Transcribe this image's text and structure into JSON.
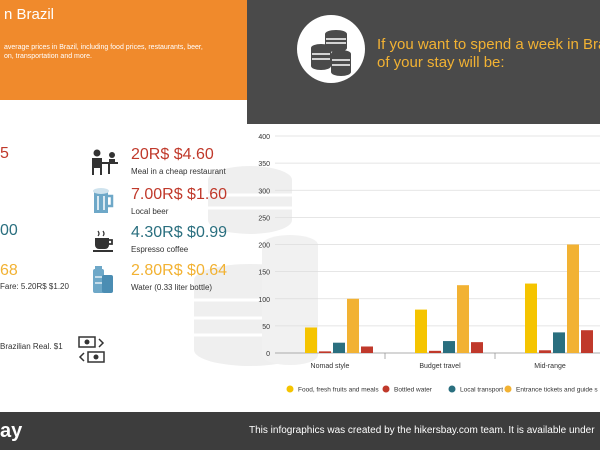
{
  "header": {
    "title": "n Brazil",
    "desc_line1": "average prices in Brazil, including food prices, restaurants, beer,",
    "desc_line2": "on, transportation and more.",
    "right_line1": "If you want to spend a week in Braz",
    "right_line2": "of your stay will be:"
  },
  "left_values": [
    {
      "text": "5",
      "color": "#c0392b"
    },
    {
      "text": "00",
      "color": "#2a6f7f"
    },
    {
      "text": "68",
      "color": "#f2b233"
    }
  ],
  "fare_text": "Fare: 5.20R$ $1.20",
  "currency_text": "Brazilian Real. $1",
  "price_items": [
    {
      "value": "20R$ $4.60",
      "label": "Meal in a cheap restaurant",
      "color": "#c0392b",
      "icon": "restaurant-icon"
    },
    {
      "value": "7.00R$ $1.60",
      "label": "Local beer",
      "color": "#c0392b",
      "icon": "beer-icon"
    },
    {
      "value": "4.30R$ $0.99",
      "label": "Espresso coffee",
      "color": "#2a6f7f",
      "icon": "coffee-icon"
    },
    {
      "value": "2.80R$ $0.64",
      "label": "Water (0.33 liter bottle)",
      "color": "#f2b233",
      "icon": "water-bottle-icon"
    }
  ],
  "footer": {
    "logo": "ay",
    "text": "This infographics was created by the hikersbay.com team. It is available under"
  },
  "chart_data": {
    "type": "bar",
    "categories": [
      "Nomad style",
      "Budget travel",
      "Mid-range"
    ],
    "series": [
      {
        "name": "Food, fresh fruits and meals",
        "color": "#f5c400",
        "values": [
          47,
          80,
          128
        ]
      },
      {
        "name": "Bottled water",
        "color": "#c0392b",
        "values": [
          3,
          4,
          5
        ]
      },
      {
        "name": "Local transport",
        "color": "#2a6f7f",
        "values": [
          19,
          22,
          38
        ]
      },
      {
        "name": "Entrance tickets and guide s",
        "color": "#f2b233",
        "values": [
          100,
          125,
          200
        ]
      },
      {
        "name": "",
        "color": "#c0392b",
        "values": [
          12,
          20,
          42
        ]
      }
    ],
    "yticks": [
      0,
      50,
      100,
      150,
      200,
      250,
      300,
      350,
      400
    ],
    "ylim": [
      0,
      400
    ],
    "grid": true,
    "legend": "bottom"
  }
}
